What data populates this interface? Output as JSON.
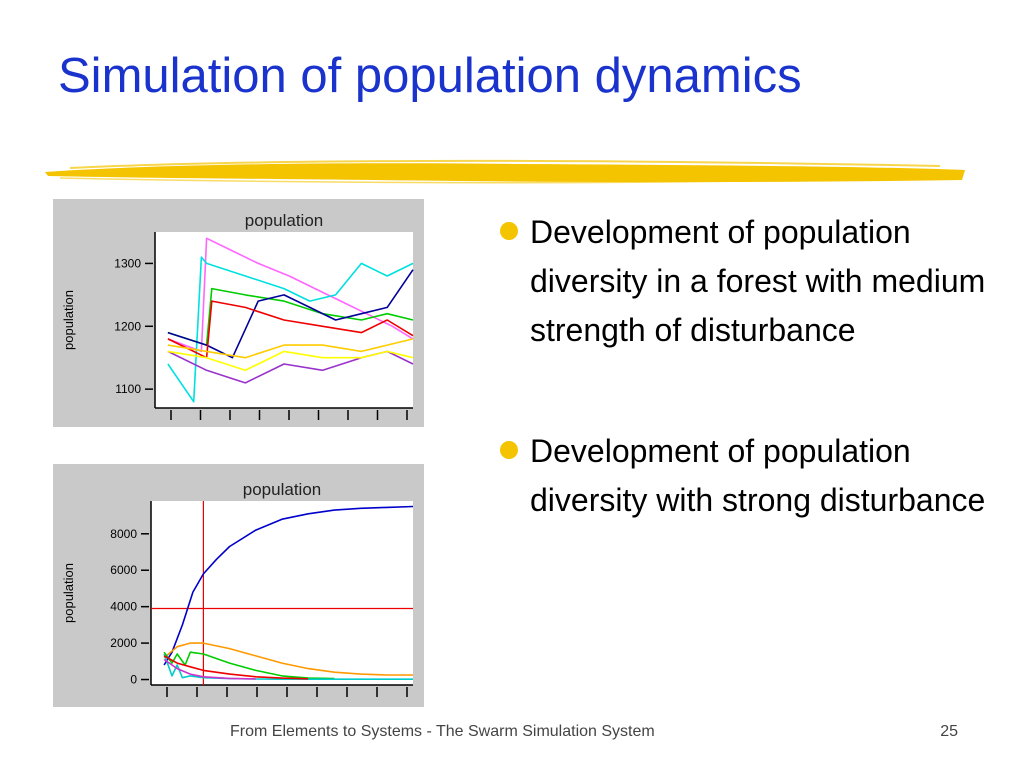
{
  "slide": {
    "title": "Simulation of population dynamics",
    "footer": "From Elements to Systems - The Swarm Simulation System",
    "page_number": "25",
    "title_color": "#1a33cc",
    "accent_color": "#f5c400",
    "bullet_color": "#f5c400"
  },
  "bullets": [
    {
      "text": "Development of population diversity in a forest with medium strength of disturbance"
    },
    {
      "text": "Development of population diversity with strong disturbance"
    }
  ],
  "chart_data": [
    {
      "type": "line",
      "title": "population",
      "ylabel": "population",
      "xlabel": "",
      "ylim": [
        1070,
        1350
      ],
      "xlim": [
        0,
        100
      ],
      "yticks": [
        1100,
        1200,
        1300
      ],
      "ytick_labels": [
        "1100",
        "1200",
        "1300"
      ],
      "grid": false,
      "legend": "none",
      "series": [
        {
          "color": "#ff66ff",
          "x": [
            5,
            18,
            20,
            30,
            40,
            52,
            62,
            72,
            82,
            92,
            100
          ],
          "y": [
            1180,
            1160,
            1340,
            1320,
            1300,
            1280,
            1260,
            1240,
            1220,
            1200,
            1180
          ]
        },
        {
          "color": "#00e0e0",
          "x": [
            5,
            15,
            18,
            20,
            35,
            50,
            60,
            70,
            80,
            90,
            100
          ],
          "y": [
            1140,
            1080,
            1310,
            1300,
            1280,
            1260,
            1240,
            1250,
            1300,
            1280,
            1300
          ]
        },
        {
          "color": "#00cc00",
          "x": [
            5,
            20,
            22,
            35,
            50,
            65,
            80,
            90,
            100
          ],
          "y": [
            1190,
            1170,
            1260,
            1250,
            1240,
            1220,
            1210,
            1220,
            1210
          ]
        },
        {
          "color": "#000099",
          "x": [
            5,
            20,
            30,
            40,
            50,
            60,
            70,
            80,
            90,
            100
          ],
          "y": [
            1190,
            1170,
            1150,
            1240,
            1250,
            1230,
            1210,
            1220,
            1230,
            1290
          ]
        },
        {
          "color": "#ee0000",
          "x": [
            5,
            20,
            22,
            35,
            50,
            65,
            80,
            90,
            100
          ],
          "y": [
            1180,
            1150,
            1240,
            1230,
            1210,
            1200,
            1190,
            1210,
            1185
          ]
        },
        {
          "color": "#ffcc00",
          "x": [
            5,
            20,
            35,
            50,
            65,
            80,
            90,
            100
          ],
          "y": [
            1170,
            1160,
            1150,
            1170,
            1170,
            1160,
            1170,
            1180
          ]
        },
        {
          "color": "#9933cc",
          "x": [
            5,
            20,
            35,
            50,
            65,
            80,
            90,
            100
          ],
          "y": [
            1160,
            1130,
            1110,
            1140,
            1130,
            1150,
            1160,
            1140
          ]
        },
        {
          "color": "#ffff00",
          "x": [
            5,
            20,
            35,
            50,
            65,
            80,
            90,
            100
          ],
          "y": [
            1160,
            1150,
            1130,
            1160,
            1150,
            1150,
            1160,
            1150
          ]
        }
      ]
    },
    {
      "type": "line",
      "title": "population",
      "ylabel": "population",
      "xlabel": "",
      "ylim": [
        -300,
        9800
      ],
      "xlim": [
        0,
        100
      ],
      "yticks": [
        0,
        2000,
        4000,
        6000,
        8000
      ],
      "ytick_labels": [
        "0",
        "2000",
        "4000",
        "6000",
        "8000"
      ],
      "grid": false,
      "legend": "none",
      "crosshair": {
        "x": 20,
        "y": 3900,
        "color": "#ee0000"
      },
      "series": [
        {
          "color": "#0000cc",
          "x": [
            5,
            8,
            12,
            16,
            20,
            25,
            30,
            40,
            50,
            60,
            70,
            80,
            90,
            100
          ],
          "y": [
            800,
            1500,
            3000,
            4800,
            5800,
            6600,
            7300,
            8200,
            8800,
            9100,
            9300,
            9400,
            9450,
            9500
          ]
        },
        {
          "color": "#ff9900",
          "x": [
            5,
            10,
            15,
            20,
            30,
            40,
            50,
            60,
            70,
            80,
            90,
            100
          ],
          "y": [
            1200,
            1800,
            2000,
            2000,
            1700,
            1300,
            900,
            600,
            400,
            300,
            250,
            250
          ]
        },
        {
          "color": "#00cc00",
          "x": [
            5,
            8,
            10,
            13,
            15,
            20,
            30,
            40,
            50,
            60,
            70
          ],
          "y": [
            1500,
            900,
            1400,
            800,
            1500,
            1400,
            900,
            500,
            200,
            80,
            50
          ]
        },
        {
          "color": "#00cccc",
          "x": [
            5,
            8,
            10,
            12,
            15,
            20,
            30,
            40,
            50,
            60,
            70,
            80,
            90,
            100
          ],
          "y": [
            1400,
            200,
            800,
            100,
            200,
            100,
            50,
            30,
            20,
            20,
            20,
            20,
            20,
            20
          ]
        },
        {
          "color": "#ee0000",
          "x": [
            5,
            10,
            15,
            20,
            30,
            40,
            50,
            60
          ],
          "y": [
            1300,
            900,
            700,
            500,
            300,
            150,
            80,
            40
          ]
        },
        {
          "color": "#cc33cc",
          "x": [
            5,
            10,
            15,
            20,
            30,
            40
          ],
          "y": [
            1100,
            600,
            300,
            150,
            60,
            30
          ]
        }
      ]
    }
  ]
}
